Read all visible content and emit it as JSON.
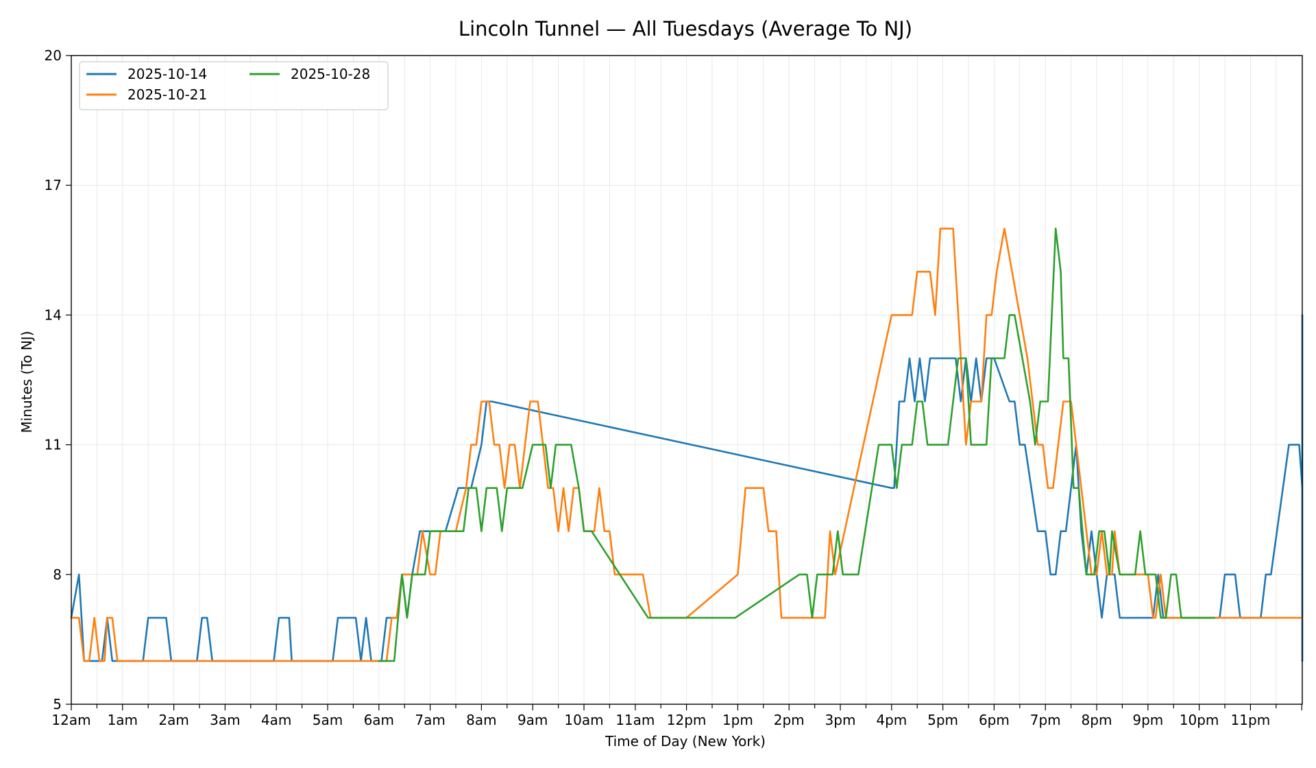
{
  "chart_data": {
    "type": "line",
    "title": "Lincoln Tunnel — All Tuesdays (Average To NJ)",
    "xlabel": "Time of Day (New York)",
    "ylabel": "Minutes (To NJ)",
    "x_unit": "hour of day",
    "xlim": [
      0,
      24
    ],
    "ylim": [
      5,
      20
    ],
    "yticks": [
      5,
      8,
      11,
      14,
      17,
      20
    ],
    "xtick_labels": [
      "12am",
      "1am",
      "2am",
      "3am",
      "4am",
      "5am",
      "6am",
      "7am",
      "8am",
      "9am",
      "10am",
      "11am",
      "12pm",
      "1pm",
      "2pm",
      "3pm",
      "4pm",
      "5pm",
      "6pm",
      "7pm",
      "8pm",
      "9pm",
      "10pm",
      "11pm"
    ],
    "grid": true,
    "legend_position": "top-left",
    "series": [
      {
        "name": "2025-10-14",
        "color": "#1f77b4",
        "points": [
          [
            0.0,
            7
          ],
          [
            0.15,
            8
          ],
          [
            0.2,
            7
          ],
          [
            0.25,
            6
          ],
          [
            0.6,
            6
          ],
          [
            0.7,
            7
          ],
          [
            0.8,
            6
          ],
          [
            1.4,
            6
          ],
          [
            1.5,
            7
          ],
          [
            1.85,
            7
          ],
          [
            1.95,
            6
          ],
          [
            2.45,
            6
          ],
          [
            2.55,
            7
          ],
          [
            2.65,
            7
          ],
          [
            2.75,
            6
          ],
          [
            3.95,
            6
          ],
          [
            4.05,
            7
          ],
          [
            4.25,
            7
          ],
          [
            4.3,
            6
          ],
          [
            5.1,
            6
          ],
          [
            5.2,
            7
          ],
          [
            5.55,
            7
          ],
          [
            5.65,
            6
          ],
          [
            5.75,
            7
          ],
          [
            5.85,
            6
          ],
          [
            6.05,
            6
          ],
          [
            6.15,
            7
          ],
          [
            6.35,
            7
          ],
          [
            6.45,
            8
          ],
          [
            6.55,
            7
          ],
          [
            6.65,
            8
          ],
          [
            6.8,
            9
          ],
          [
            7.1,
            9
          ],
          [
            7.3,
            9
          ],
          [
            7.55,
            10
          ],
          [
            7.8,
            10
          ],
          [
            8.0,
            11
          ],
          [
            8.1,
            12
          ],
          [
            8.2,
            12
          ],
          [
            16.0,
            10
          ],
          [
            16.05,
            10
          ],
          [
            16.15,
            12
          ],
          [
            16.25,
            12
          ],
          [
            16.35,
            13
          ],
          [
            16.45,
            12
          ],
          [
            16.55,
            13
          ],
          [
            16.65,
            12
          ],
          [
            16.75,
            13
          ],
          [
            17.25,
            13
          ],
          [
            17.35,
            12
          ],
          [
            17.45,
            13
          ],
          [
            17.55,
            12
          ],
          [
            17.65,
            13
          ],
          [
            17.75,
            12
          ],
          [
            17.85,
            13
          ],
          [
            18.0,
            13
          ],
          [
            18.3,
            12
          ],
          [
            18.4,
            12
          ],
          [
            18.5,
            11
          ],
          [
            18.6,
            11
          ],
          [
            18.85,
            9
          ],
          [
            19.0,
            9
          ],
          [
            19.1,
            8
          ],
          [
            19.2,
            8
          ],
          [
            19.3,
            9
          ],
          [
            19.4,
            9
          ],
          [
            19.5,
            10
          ],
          [
            19.6,
            11
          ],
          [
            19.7,
            9
          ],
          [
            19.8,
            8
          ],
          [
            19.9,
            9
          ],
          [
            20.1,
            7
          ],
          [
            20.2,
            8
          ],
          [
            20.35,
            8
          ],
          [
            20.45,
            7
          ],
          [
            21.1,
            7
          ],
          [
            21.2,
            8
          ],
          [
            21.3,
            7
          ],
          [
            22.4,
            7
          ],
          [
            22.5,
            8
          ],
          [
            22.7,
            8
          ],
          [
            22.8,
            7
          ],
          [
            23.2,
            7
          ],
          [
            23.3,
            8
          ],
          [
            23.4,
            8
          ],
          [
            23.75,
            11
          ],
          [
            23.95,
            11
          ],
          [
            24.05,
            10
          ],
          [
            24.15,
            14
          ],
          [
            24.25,
            13
          ],
          [
            24.35,
            13
          ],
          [
            24.45,
            9
          ],
          [
            24.55,
            7
          ],
          [
            24.65,
            7
          ],
          [
            24.75,
            6
          ]
        ]
      },
      {
        "name": "2025-10-21",
        "color": "#ff7f0e",
        "points": [
          [
            0.0,
            7
          ],
          [
            0.15,
            7
          ],
          [
            0.25,
            6
          ],
          [
            0.35,
            6
          ],
          [
            0.45,
            7
          ],
          [
            0.55,
            6
          ],
          [
            0.65,
            6
          ],
          [
            0.7,
            7
          ],
          [
            0.8,
            7
          ],
          [
            0.9,
            6
          ],
          [
            6.15,
            6
          ],
          [
            6.25,
            7
          ],
          [
            6.35,
            7
          ],
          [
            6.45,
            8
          ],
          [
            6.6,
            8
          ],
          [
            6.75,
            8
          ],
          [
            6.85,
            9
          ],
          [
            7.0,
            8
          ],
          [
            7.1,
            8
          ],
          [
            7.2,
            9
          ],
          [
            7.5,
            9
          ],
          [
            7.7,
            10
          ],
          [
            7.8,
            11
          ],
          [
            7.9,
            11
          ],
          [
            8.0,
            12
          ],
          [
            8.15,
            12
          ],
          [
            8.25,
            11
          ],
          [
            8.35,
            11
          ],
          [
            8.45,
            10
          ],
          [
            8.55,
            11
          ],
          [
            8.65,
            11
          ],
          [
            8.75,
            10
          ],
          [
            8.85,
            11
          ],
          [
            8.95,
            12
          ],
          [
            9.1,
            12
          ],
          [
            9.2,
            11
          ],
          [
            9.3,
            10
          ],
          [
            9.4,
            10
          ],
          [
            9.5,
            9
          ],
          [
            9.6,
            10
          ],
          [
            9.7,
            9
          ],
          [
            9.8,
            10
          ],
          [
            9.9,
            10
          ],
          [
            10.0,
            9
          ],
          [
            10.2,
            9
          ],
          [
            10.3,
            10
          ],
          [
            10.4,
            9
          ],
          [
            10.5,
            9
          ],
          [
            10.6,
            8
          ],
          [
            11.0,
            8
          ],
          [
            11.15,
            8
          ],
          [
            11.3,
            7
          ],
          [
            12.0,
            7
          ],
          [
            13.0,
            8
          ],
          [
            13.15,
            10
          ],
          [
            13.5,
            10
          ],
          [
            13.6,
            9
          ],
          [
            13.75,
            9
          ],
          [
            13.85,
            7
          ],
          [
            14.5,
            7
          ],
          [
            14.7,
            7
          ],
          [
            14.8,
            9
          ],
          [
            14.9,
            8
          ],
          [
            16.0,
            14
          ],
          [
            16.4,
            14
          ],
          [
            16.5,
            15
          ],
          [
            16.75,
            15
          ],
          [
            16.85,
            14
          ],
          [
            16.95,
            16
          ],
          [
            17.2,
            16
          ],
          [
            17.35,
            13
          ],
          [
            17.45,
            11
          ],
          [
            17.55,
            12
          ],
          [
            17.75,
            12
          ],
          [
            17.85,
            14
          ],
          [
            17.95,
            14
          ],
          [
            18.05,
            15
          ],
          [
            18.2,
            16
          ],
          [
            18.35,
            15
          ],
          [
            18.65,
            13
          ],
          [
            18.75,
            12
          ],
          [
            18.85,
            11
          ],
          [
            18.95,
            11
          ],
          [
            19.05,
            10
          ],
          [
            19.15,
            10
          ],
          [
            19.25,
            11
          ],
          [
            19.35,
            12
          ],
          [
            19.5,
            12
          ],
          [
            19.6,
            11
          ],
          [
            19.7,
            10
          ],
          [
            19.8,
            9
          ],
          [
            19.9,
            8
          ],
          [
            20.0,
            8
          ],
          [
            20.1,
            9
          ],
          [
            20.2,
            8
          ],
          [
            20.3,
            8
          ],
          [
            20.35,
            9
          ],
          [
            20.45,
            8
          ],
          [
            21.0,
            8
          ],
          [
            21.1,
            7
          ],
          [
            21.15,
            7
          ],
          [
            21.25,
            8
          ],
          [
            21.35,
            7
          ],
          [
            22.4,
            7
          ],
          [
            22.6,
            7
          ],
          [
            24.75,
            7
          ]
        ]
      },
      {
        "name": "2025-10-28",
        "color": "#2ca02c",
        "points": [
          [
            6.0,
            6
          ],
          [
            6.3,
            6
          ],
          [
            6.45,
            8
          ],
          [
            6.55,
            7
          ],
          [
            6.65,
            8
          ],
          [
            6.9,
            8
          ],
          [
            7.0,
            9
          ],
          [
            7.65,
            9
          ],
          [
            7.75,
            10
          ],
          [
            7.9,
            10
          ],
          [
            8.0,
            9
          ],
          [
            8.1,
            10
          ],
          [
            8.3,
            10
          ],
          [
            8.4,
            9
          ],
          [
            8.5,
            10
          ],
          [
            8.8,
            10
          ],
          [
            9.0,
            11
          ],
          [
            9.25,
            11
          ],
          [
            9.35,
            10
          ],
          [
            9.45,
            11
          ],
          [
            9.75,
            11
          ],
          [
            9.9,
            10
          ],
          [
            10.0,
            9
          ],
          [
            10.15,
            9
          ],
          [
            11.25,
            7
          ],
          [
            12.95,
            7
          ],
          [
            14.2,
            8
          ],
          [
            14.35,
            8
          ],
          [
            14.45,
            7
          ],
          [
            14.55,
            8
          ],
          [
            14.85,
            8
          ],
          [
            14.95,
            9
          ],
          [
            15.05,
            8
          ],
          [
            15.35,
            8
          ],
          [
            15.75,
            11
          ],
          [
            16.0,
            11
          ],
          [
            16.1,
            10
          ],
          [
            16.2,
            11
          ],
          [
            16.4,
            11
          ],
          [
            16.5,
            12
          ],
          [
            16.6,
            12
          ],
          [
            16.7,
            11
          ],
          [
            17.1,
            11
          ],
          [
            17.3,
            13
          ],
          [
            17.45,
            13
          ],
          [
            17.55,
            11
          ],
          [
            17.85,
            11
          ],
          [
            17.95,
            13
          ],
          [
            18.2,
            13
          ],
          [
            18.3,
            14
          ],
          [
            18.4,
            14
          ],
          [
            18.7,
            12
          ],
          [
            18.8,
            11
          ],
          [
            18.9,
            12
          ],
          [
            19.05,
            12
          ],
          [
            19.2,
            16
          ],
          [
            19.3,
            15
          ],
          [
            19.35,
            13
          ],
          [
            19.45,
            13
          ],
          [
            19.55,
            10
          ],
          [
            19.65,
            10
          ],
          [
            19.8,
            8
          ],
          [
            19.95,
            8
          ],
          [
            20.05,
            9
          ],
          [
            20.15,
            9
          ],
          [
            20.25,
            8
          ],
          [
            20.3,
            9
          ],
          [
            20.45,
            8
          ],
          [
            20.75,
            8
          ],
          [
            20.85,
            9
          ],
          [
            20.95,
            8
          ],
          [
            21.15,
            8
          ],
          [
            21.25,
            7
          ],
          [
            21.35,
            7
          ],
          [
            21.45,
            8
          ],
          [
            21.55,
            8
          ],
          [
            21.65,
            7
          ],
          [
            22.3,
            7
          ]
        ]
      }
    ]
  }
}
